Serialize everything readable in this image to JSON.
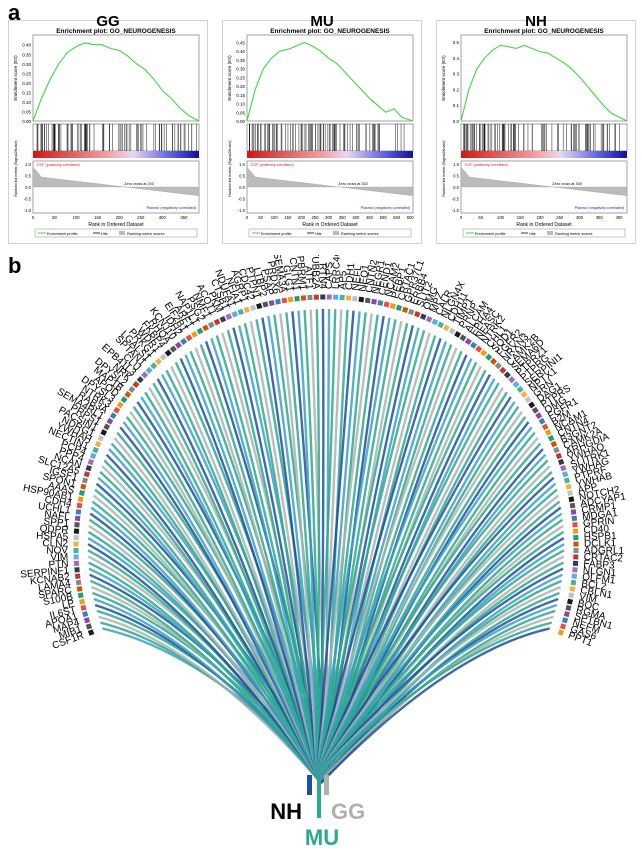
{
  "panels": {
    "a": "a",
    "b": "b"
  },
  "chart_data": [
    {
      "type": "line",
      "group": "GG",
      "title": "Enrichment plot: GO_NEUROGENESIS",
      "ylabel": "Enrichment score (ES)",
      "ylabel2": "Ranked list metric (Signal2Noise)",
      "xlabel": "Rank in Ordered Dataset",
      "pos_label": "'CSF' (positively correlated)",
      "neg_label": "'Plasma' (negatively correlated)",
      "zero_cross": "Zero cross at 203",
      "xticks": [
        0,
        50,
        100,
        150,
        200,
        250,
        300,
        350
      ],
      "yticks": [
        "0.40",
        "0.35",
        "0.30",
        "0.25",
        "0.20",
        "0.15",
        "0.10",
        "0.05",
        "0.00"
      ],
      "ylim": [
        0,
        0.43
      ],
      "xlim": [
        0,
        385
      ],
      "y2ticks": [
        "1.0",
        "0.5",
        "0.0",
        "-0.5",
        "-1.0"
      ],
      "legend": [
        "Enrichment profile",
        "Hits",
        "Ranking metric scores"
      ],
      "es_x": [
        0,
        20,
        40,
        60,
        80,
        100,
        120,
        140,
        160,
        180,
        200,
        220,
        240,
        260,
        280,
        300,
        320,
        340,
        360,
        385
      ],
      "es_y": [
        0.0,
        0.12,
        0.22,
        0.3,
        0.36,
        0.39,
        0.41,
        0.4,
        0.4,
        0.38,
        0.37,
        0.34,
        0.3,
        0.27,
        0.22,
        0.16,
        0.12,
        0.07,
        0.03,
        0.0
      ]
    },
    {
      "type": "line",
      "group": "MU",
      "title": "Enrichment plot: GO_NEUROGENESIS",
      "ylabel": "Enrichment score (ES)",
      "ylabel2": "Ranked list metric (Signal2Noise)",
      "xlabel": "Rank in Ordered Dataset",
      "pos_label": "'CSF' (positively correlated)",
      "neg_label": "'Plasma' (negatively correlated)",
      "zero_cross": "Zero cross at 302",
      "xticks": [
        0,
        50,
        100,
        150,
        200,
        250,
        300,
        350,
        400,
        450,
        500,
        550,
        600
      ],
      "yticks": [
        "0.45",
        "0.40",
        "0.35",
        "0.30",
        "0.25",
        "0.20",
        "0.15",
        "0.10",
        "0.05",
        "0.00"
      ],
      "ylim": [
        0,
        0.47
      ],
      "xlim": [
        0,
        610
      ],
      "y2ticks": [
        "1.0",
        "0.5",
        "0.0",
        "-0.5",
        "-1.0"
      ],
      "legend": [
        "Enrichment profile",
        "Hits",
        "Ranking metric scores"
      ],
      "es_x": [
        0,
        30,
        60,
        90,
        120,
        150,
        180,
        210,
        240,
        270,
        300,
        330,
        360,
        390,
        420,
        450,
        480,
        510,
        540,
        570,
        610
      ],
      "es_y": [
        0.0,
        0.18,
        0.3,
        0.36,
        0.4,
        0.41,
        0.43,
        0.45,
        0.43,
        0.4,
        0.36,
        0.33,
        0.28,
        0.23,
        0.18,
        0.13,
        0.09,
        0.05,
        0.07,
        0.02,
        0.0
      ]
    },
    {
      "type": "line",
      "group": "NH",
      "title": "Enrichment plot: GO_NEUROGENESIS",
      "ylabel": "Enrichment score (ES)",
      "ylabel2": "Ranked list metric (Signal2Noise)",
      "xlabel": "Rank in Ordered Dataset",
      "pos_label": "'CSF' (positively correlated)",
      "neg_label": "'Plasma' (negatively correlated)",
      "zero_cross": "Zero cross at 305",
      "xticks": [
        0,
        50,
        100,
        150,
        200,
        250,
        300,
        350,
        400
      ],
      "yticks": [
        "0.5",
        "0.4",
        "0.3",
        "0.2",
        "0.1",
        "0.0"
      ],
      "ylim": [
        0,
        0.52
      ],
      "xlim": [
        0,
        420
      ],
      "y2ticks": [
        "1.0",
        "0.5",
        "0.0",
        "-0.5",
        "-1.0"
      ],
      "legend": [
        "Enrichment profile",
        "Hits",
        "Ranking metric scores"
      ],
      "es_x": [
        0,
        20,
        40,
        60,
        80,
        100,
        120,
        140,
        160,
        180,
        200,
        220,
        240,
        260,
        280,
        300,
        320,
        340,
        360,
        380,
        420
      ],
      "es_y": [
        0.0,
        0.2,
        0.33,
        0.4,
        0.45,
        0.48,
        0.47,
        0.46,
        0.48,
        0.46,
        0.44,
        0.43,
        0.4,
        0.37,
        0.33,
        0.28,
        0.22,
        0.16,
        0.1,
        0.05,
        0.0
      ]
    },
    {
      "type": "chord",
      "groups": [
        "NH",
        "GG",
        "MU"
      ],
      "group_colors": {
        "NH": "#1f4fa0",
        "GG": "#b0b0b0",
        "MU": "#2aa98c"
      },
      "genes": [
        "CSF1R",
        "MIB1",
        "MAP4",
        "APOA1",
        "IL6ST",
        "LP",
        "S100B",
        "SPARC",
        "LAMA4",
        "KCNAB2",
        "SERPINF1",
        "PTN",
        "VIM",
        "NOV",
        "CLN2",
        "HSPA5",
        "QDPR",
        "SPP1",
        "NAFL",
        "UCHL1",
        "CDH4",
        "HSP90AB1",
        "AAAS",
        "SPON1",
        "IGSF1",
        "SLC12A5",
        "NCAN",
        "PPP4",
        "PCP4",
        "NECTIN1",
        "YWHAH",
        "NDRG1",
        "PACSIN1",
        "PRPS1",
        "SEMA4RL1",
        "RAB3A",
        "NTRK3",
        "DPYSL3",
        "APOD",
        "MAP1B",
        "DPYSL2",
        "NRK",
        "EPB41L3",
        "CLU",
        "SPTAN1",
        "LGALS1",
        "PRKG1",
        "WDR1",
        "FKBP4",
        "RHOA",
        "KCNJ10",
        "IDH2",
        "EIF2B1",
        "ARF1",
        "NAP1L1",
        "PSG2",
        "NMF1",
        "ACOT1",
        "PKM",
        "CTSB1",
        "NDUFA1",
        "NFIA1",
        "AGRP1",
        "CDC42",
        "PTPN1",
        "LTBP2",
        "PSAP",
        "PRDX6",
        "SEMA3A",
        "GLG1",
        "CNTN1",
        "PBRM1",
        "ATF1",
        "TUBB2A",
        "RTN4",
        "CAPS",
        "LRRC4C",
        "AP5",
        "CDH1",
        "NEFL",
        "NEO1",
        "CNTN2",
        "NEGR1",
        "CEND1",
        "NCAM2",
        "PEBP1",
        "CRTAC1",
        "GPR37L1",
        "ERBB4",
        "SLIT2",
        "OMG",
        "MPZ",
        "CALR",
        "NLGN4X",
        "CDH11",
        "TIMP1",
        "PRNP",
        "ALCAM",
        "EPHA4",
        "NFASC",
        "NTRK2",
        "CHL1",
        "SOD1",
        "FGFR2",
        "NRXN3",
        "CAMK2B",
        "SEMA6D",
        "PTPRZ1",
        "PTPRG",
        "SERPINI1",
        "NPTX1",
        "GRN",
        "DAG1",
        "PTPRS",
        "OMG",
        "FGFR1",
        "B2M",
        "NCAM1",
        "CNTN4",
        "B3GNT2",
        "CAMK2A",
        "ARHGDIA",
        "YWHAQ",
        "SLITRK1",
        "YWHAG",
        "PTPRF",
        "YWHAB",
        "APP",
        "NOTCH2",
        "ADCYAP1",
        "CRMP1",
        "MDGA1",
        "GPRIN",
        "CD40",
        "HSPB1",
        "DCLK1",
        "ADGRL1",
        "CRTAC2",
        "FABP3",
        "NLGN1",
        "OLFM1",
        "BCL2",
        "CBLN1",
        "VIM",
        "BOC",
        "RGMA",
        "SPTBN1",
        "NEFM",
        "GAS6",
        "PPT1"
      ]
    }
  ]
}
